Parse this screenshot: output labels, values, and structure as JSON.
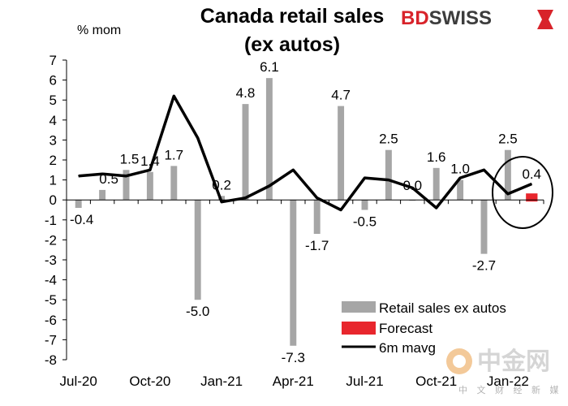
{
  "brand": {
    "name_bd": "BD",
    "name_swiss": "SWISS",
    "bd_color": "#d8232a",
    "swiss_color": "#3c3c3c"
  },
  "watermark": {
    "cn_name": "中金网",
    "cn_sub": "中 文 财 经 新 媒 体"
  },
  "chart_data": {
    "type": "bar",
    "title_line1": "Canada retail sales",
    "title_line2": "(ex autos)",
    "ylabel": "% mom",
    "ylim": [
      -8,
      7
    ],
    "yticks": [
      7,
      6,
      5,
      4,
      3,
      2,
      1,
      0,
      -1,
      -2,
      -3,
      -4,
      -5,
      -6,
      -7,
      -8
    ],
    "xtick_labels": [
      {
        "label": "Jul-20",
        "index": 0
      },
      {
        "label": "Oct-20",
        "index": 3
      },
      {
        "label": "Jan-21",
        "index": 6
      },
      {
        "label": "Apr-21",
        "index": 9
      },
      {
        "label": "Jul-21",
        "index": 12
      },
      {
        "label": "Oct-21",
        "index": 15
      },
      {
        "label": "Jan-22",
        "index": 18
      }
    ],
    "categories": [
      "Jul-20",
      "Aug-20",
      "Sep-20",
      "Oct-20",
      "Nov-20",
      "Dec-20",
      "Jan-21",
      "Feb-21",
      "Mar-21",
      "Apr-21",
      "May-21",
      "Jun-21",
      "Jul-21",
      "Aug-21",
      "Sep-21",
      "Oct-21",
      "Nov-21",
      "Dec-21",
      "Jan-22",
      "Feb-22"
    ],
    "series": [
      {
        "name": "Retail sales ex autos",
        "type": "bar",
        "color": "#a6a6a6",
        "values": [
          -0.4,
          0.5,
          1.5,
          1.4,
          1.7,
          -5.0,
          0.2,
          4.8,
          6.1,
          -7.3,
          -1.7,
          4.7,
          -0.5,
          2.5,
          0.0,
          1.6,
          1.0,
          -2.7,
          2.5,
          null
        ]
      },
      {
        "name": "Forecast",
        "type": "bar",
        "color": "#e8262d",
        "values": [
          null,
          null,
          null,
          null,
          null,
          null,
          null,
          null,
          null,
          null,
          null,
          null,
          null,
          null,
          null,
          null,
          null,
          null,
          null,
          0.4
        ]
      },
      {
        "name": "6m mavg",
        "type": "line",
        "color": "#000000",
        "values": [
          1.2,
          1.3,
          1.2,
          1.5,
          5.2,
          3.1,
          -0.1,
          0.1,
          0.7,
          1.5,
          0.1,
          -0.5,
          1.1,
          1.0,
          0.6,
          -0.4,
          1.1,
          1.5,
          0.3,
          0.8
        ]
      }
    ],
    "data_labels": [
      {
        "index": 0,
        "text": "-0.4"
      },
      {
        "index": 1,
        "text": "0.5"
      },
      {
        "index": 2,
        "text": "1.5"
      },
      {
        "index": 3,
        "text": "1.4"
      },
      {
        "index": 4,
        "text": "1.7"
      },
      {
        "index": 5,
        "text": "-5.0"
      },
      {
        "index": 6,
        "text": "0.2"
      },
      {
        "index": 7,
        "text": "4.8"
      },
      {
        "index": 8,
        "text": "6.1"
      },
      {
        "index": 9,
        "text": "-7.3"
      },
      {
        "index": 10,
        "text": "-1.7"
      },
      {
        "index": 11,
        "text": "4.7"
      },
      {
        "index": 12,
        "text": "-0.5"
      },
      {
        "index": 13,
        "text": "2.5"
      },
      {
        "index": 14,
        "text": "0.0"
      },
      {
        "index": 15,
        "text": "1.6"
      },
      {
        "index": 16,
        "text": "1.0"
      },
      {
        "index": 17,
        "text": "-2.7"
      },
      {
        "index": 18,
        "text": "2.5"
      },
      {
        "index": 19,
        "text": "0.4"
      }
    ],
    "legend_position": "bottom-right",
    "grid": false
  }
}
